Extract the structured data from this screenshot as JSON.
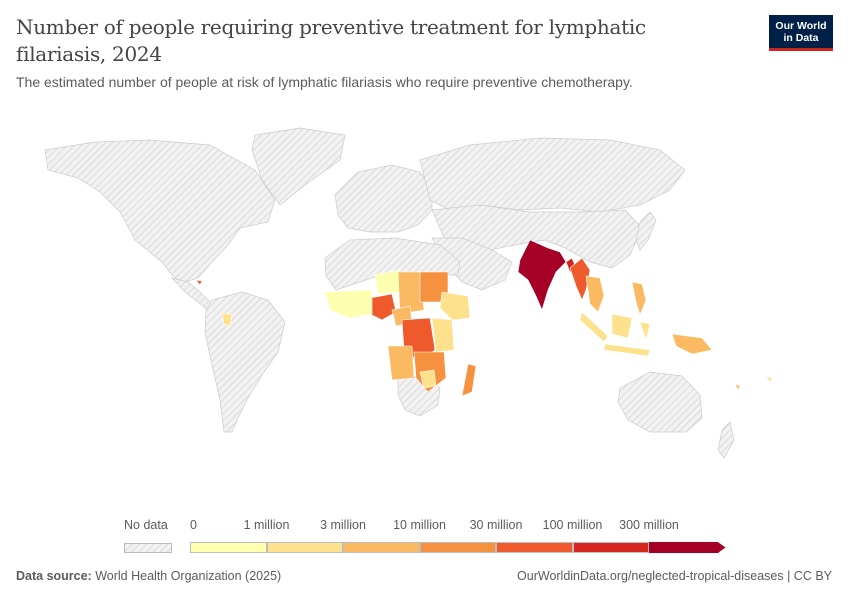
{
  "header": {
    "title": "Number of people requiring preventive treatment for lymphatic filariasis, 2024",
    "subtitle": "The estimated number of people at risk of lymphatic filariasis who require preventive chemotherapy.",
    "logo_line1": "Our World",
    "logo_line2": "in Data"
  },
  "legend": {
    "no_data_label": "No data",
    "bins": [
      {
        "label": "0",
        "color": "#ffffb0"
      },
      {
        "label": "1 million",
        "color": "#fde18c"
      },
      {
        "label": "3 million",
        "color": "#fbb961"
      },
      {
        "label": "10 million",
        "color": "#f6923f"
      },
      {
        "label": "30 million",
        "color": "#ef5a2c"
      },
      {
        "label": "100 million",
        "color": "#d7261d"
      },
      {
        "label": "300 million",
        "color": "#a50026"
      }
    ]
  },
  "colors": {
    "no_data": "#e9e9e9",
    "hatch": "#cfcfcf",
    "border": "#c7c7c7"
  },
  "footer": {
    "source_label": "Data source:",
    "source_value": "World Health Organization (2025)",
    "url": "OurWorldinData.org/neglected-tropical-diseases | CC BY"
  }
}
